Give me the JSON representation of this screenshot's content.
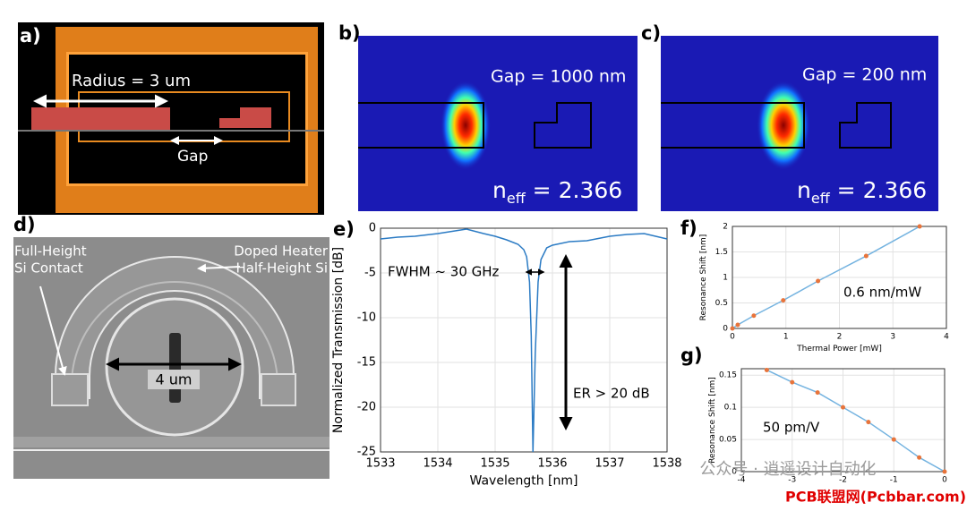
{
  "panels": {
    "a": {
      "letter": "a)",
      "radius_label": "Radius = 3 um",
      "gap_label": "Gap"
    },
    "b": {
      "letter": "b)",
      "gap_label": "Gap = 1000 nm",
      "neff_symbol": "n",
      "neff_subscript": "eff",
      "neff_value": " = 2.366"
    },
    "c": {
      "letter": "c)",
      "gap_label": "Gap = 200 nm",
      "neff_symbol": "n",
      "neff_subscript": "eff",
      "neff_value": " = 2.366"
    },
    "d": {
      "letter": "d)",
      "contact_label": [
        "Full-Height",
        "Si Contact"
      ],
      "heater_label": [
        "Doped Heater",
        "Half-Height Si"
      ],
      "diameter_label": "4 um"
    }
  },
  "watermark": [
    "公众号 · 逍遥设计自动化",
    "PCB联盟网(Pcbbar.com)"
  ],
  "chart_data": [
    {
      "type": "line",
      "letter": "e)",
      "x_label": "Wavelength [nm]",
      "y_label": "Normalized Transmission [dB]",
      "x": [
        1533,
        1533.3,
        1533.6,
        1534,
        1534.3,
        1534.5,
        1534.8,
        1535,
        1535.2,
        1535.4,
        1535.5,
        1535.55,
        1535.6,
        1535.63,
        1535.66,
        1535.7,
        1535.75,
        1535.8,
        1535.9,
        1536,
        1536.3,
        1536.6,
        1537,
        1537.3,
        1537.6,
        1538
      ],
      "values": [
        -1.2,
        -1.0,
        -0.9,
        -0.6,
        -0.3,
        -0.1,
        -0.6,
        -0.9,
        -1.3,
        -1.8,
        -2.4,
        -3.2,
        -6,
        -12,
        -25,
        -14,
        -6,
        -3.5,
        -2.2,
        -1.9,
        -1.5,
        -1.4,
        -0.9,
        -0.7,
        -0.6,
        -1.2
      ],
      "color": "#2b7bc4",
      "xlim": [
        1533,
        1538
      ],
      "xticks": [
        1533,
        1534,
        1535,
        1536,
        1537,
        1538
      ],
      "ylim": [
        -25,
        0
      ],
      "yticks": [
        0,
        -5,
        -10,
        -15,
        -20,
        -25
      ],
      "grid": true,
      "annotations": [
        "FWHM ~ 30 GHz",
        "ER > 20 dB"
      ]
    },
    {
      "type": "line",
      "letter": "f)",
      "x_label": "Thermal Power [mW]",
      "y_label": "Resonance Shift [nm]",
      "x": [
        0,
        0.1,
        0.4,
        0.95,
        1.6,
        2.5,
        3.5
      ],
      "values": [
        0,
        0.07,
        0.25,
        0.55,
        0.93,
        1.42,
        2.0
      ],
      "color": "#74b3e0",
      "marker_color": "#e8743b",
      "markers": true,
      "xlim": [
        0,
        4
      ],
      "xticks": [
        0,
        1,
        2,
        3,
        4
      ],
      "ylim": [
        0,
        2
      ],
      "yticks": [
        0,
        0.5,
        1,
        1.5,
        2
      ],
      "grid": true,
      "annotations": [
        "0.6 nm/mW"
      ]
    },
    {
      "type": "line",
      "letter": "g)",
      "y_label": "Resonance Shift [nm]",
      "x": [
        -3.5,
        -3,
        -2.5,
        -2,
        -1.5,
        -1,
        -0.5,
        0
      ],
      "values": [
        0.158,
        0.139,
        0.123,
        0.1,
        0.077,
        0.05,
        0.022,
        0
      ],
      "color": "#74b3e0",
      "marker_color": "#e8743b",
      "markers": true,
      "xlim": [
        -4,
        0
      ],
      "xticks": [
        -4,
        -3,
        -2,
        -1,
        0
      ],
      "ylim": [
        0,
        0.16
      ],
      "yticks": [
        0,
        0.05,
        0.1,
        0.15
      ],
      "grid": true,
      "annotations": [
        "50 pm/V"
      ]
    }
  ]
}
